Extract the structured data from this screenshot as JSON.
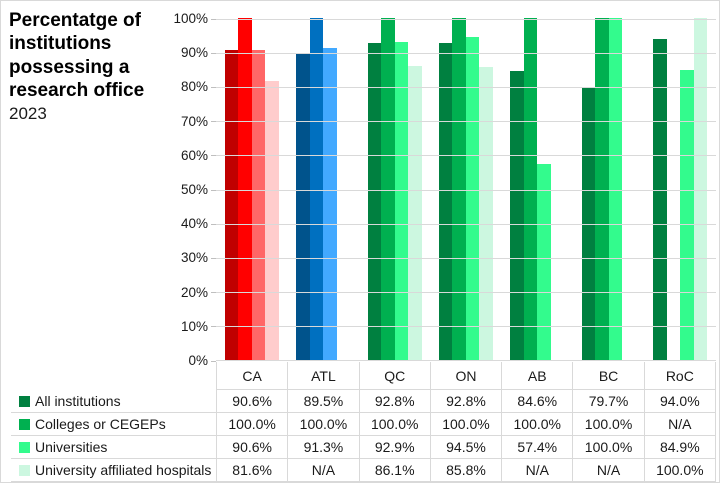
{
  "title": {
    "text": "Percentatge of institutions possessing a research office",
    "year": "2023"
  },
  "colors": {
    "gridline": "#d9d9d9",
    "table_line": "#d9d9d9",
    "palettes": {
      "CA": [
        "#c00000",
        "#ff0000",
        "#ff6666",
        "#ffcccc"
      ],
      "ATL": [
        "#00538c",
        "#0070c0",
        "#42a9ff",
        "#cce4ff"
      ],
      "default": [
        "#008040",
        "#00b050",
        "#33fb8d",
        "#ccf7e0"
      ]
    }
  },
  "chart_data": {
    "type": "bar",
    "title": "Percentatge of institutions possessing a research office 2023",
    "categories": [
      "CA",
      "ATL",
      "QC",
      "ON",
      "AB",
      "BC",
      "RoC"
    ],
    "series": [
      {
        "name": "All institutions",
        "values": [
          90.6,
          89.5,
          92.8,
          92.8,
          84.6,
          79.7,
          94.0
        ]
      },
      {
        "name": "Colleges or CEGEPs",
        "values": [
          100.0,
          100.0,
          100.0,
          100.0,
          100.0,
          100.0,
          null
        ]
      },
      {
        "name": "Universities",
        "values": [
          90.6,
          91.3,
          92.9,
          94.5,
          57.4,
          100.0,
          84.9
        ]
      },
      {
        "name": "University affiliated hospitals",
        "values": [
          81.6,
          null,
          86.1,
          85.8,
          null,
          null,
          100.0
        ]
      }
    ],
    "ylim": [
      0,
      100
    ],
    "yticks": [
      "100%",
      "90%",
      "80%",
      "70%",
      "60%",
      "50%",
      "40%",
      "30%",
      "20%",
      "10%",
      "0%"
    ],
    "grid": true,
    "legend_position": "table-left"
  },
  "table": {
    "rows": [
      {
        "label": "All institutions",
        "swatch": "#008040",
        "values": [
          "90.6%",
          "89.5%",
          "92.8%",
          "92.8%",
          "84.6%",
          "79.7%",
          "94.0%"
        ]
      },
      {
        "label": "Colleges or CEGEPs",
        "swatch": "#00b050",
        "values": [
          "100.0%",
          "100.0%",
          "100.0%",
          "100.0%",
          "100.0%",
          "100.0%",
          "N/A"
        ]
      },
      {
        "label": "Universities",
        "swatch": "#33fb8d",
        "values": [
          "90.6%",
          "91.3%",
          "92.9%",
          "94.5%",
          "57.4%",
          "100.0%",
          "84.9%"
        ]
      },
      {
        "label": "University affiliated hospitals",
        "swatch": "#ccf7e0",
        "values": [
          "81.6%",
          "N/A",
          "86.1%",
          "85.8%",
          "N/A",
          "N/A",
          "100.0%"
        ]
      }
    ]
  }
}
